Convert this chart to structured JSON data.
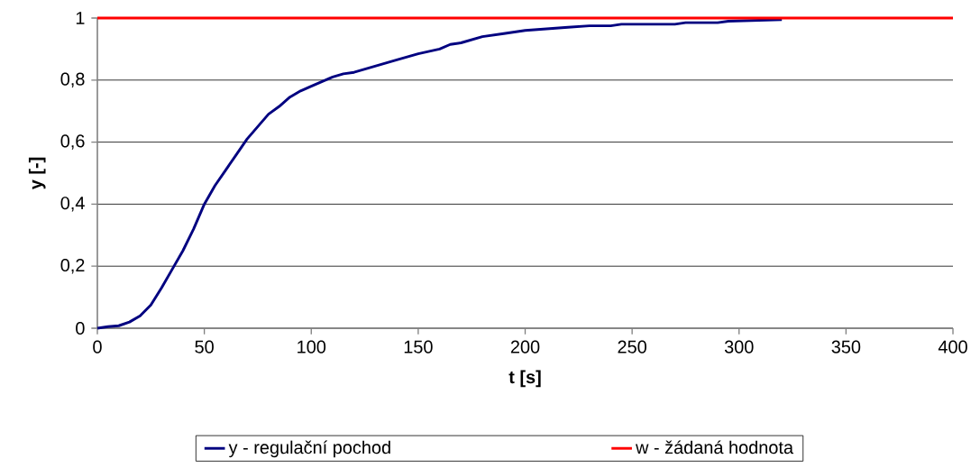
{
  "chart_data": {
    "type": "line",
    "xlabel": "t [s]",
    "ylabel": "y [-]",
    "xlim": [
      0,
      400
    ],
    "xticks": [
      0,
      50,
      100,
      150,
      200,
      250,
      300,
      350,
      400
    ],
    "ylim": [
      0,
      1
    ],
    "yticks": [
      0,
      {
        "value": 0.2,
        "label": "0,2"
      },
      {
        "value": 0.4,
        "label": "0,4"
      },
      {
        "value": 0.6,
        "label": "0,6"
      },
      {
        "value": 0.8,
        "label": "0,8"
      },
      1
    ],
    "grid": "y",
    "legend": "bottom",
    "marker": "none",
    "line_style": "solid",
    "series": [
      {
        "name": "y - regulační pochod",
        "color": "#000080",
        "x": [
          0,
          5,
          10,
          15,
          20,
          25,
          30,
          35,
          40,
          45,
          50,
          55,
          60,
          65,
          70,
          75,
          80,
          85,
          90,
          95,
          100,
          110,
          115,
          120,
          130,
          140,
          150,
          160,
          165,
          170,
          180,
          190,
          200,
          210,
          220,
          230,
          240,
          245,
          270,
          275,
          290,
          295,
          320
        ],
        "values": [
          0,
          0.005,
          0.008,
          0.02,
          0.04,
          0.075,
          0.13,
          0.19,
          0.25,
          0.32,
          0.4,
          0.46,
          0.51,
          0.56,
          0.61,
          0.65,
          0.69,
          0.715,
          0.745,
          0.765,
          0.78,
          0.81,
          0.82,
          0.825,
          0.845,
          0.865,
          0.885,
          0.9,
          0.915,
          0.92,
          0.94,
          0.95,
          0.96,
          0.965,
          0.97,
          0.975,
          0.975,
          0.98,
          0.98,
          0.985,
          0.985,
          0.99,
          0.995
        ]
      },
      {
        "name": "w - žádaná hodnota",
        "color": "#ff0000",
        "x": [
          0,
          400
        ],
        "values": [
          1,
          1
        ]
      }
    ]
  }
}
